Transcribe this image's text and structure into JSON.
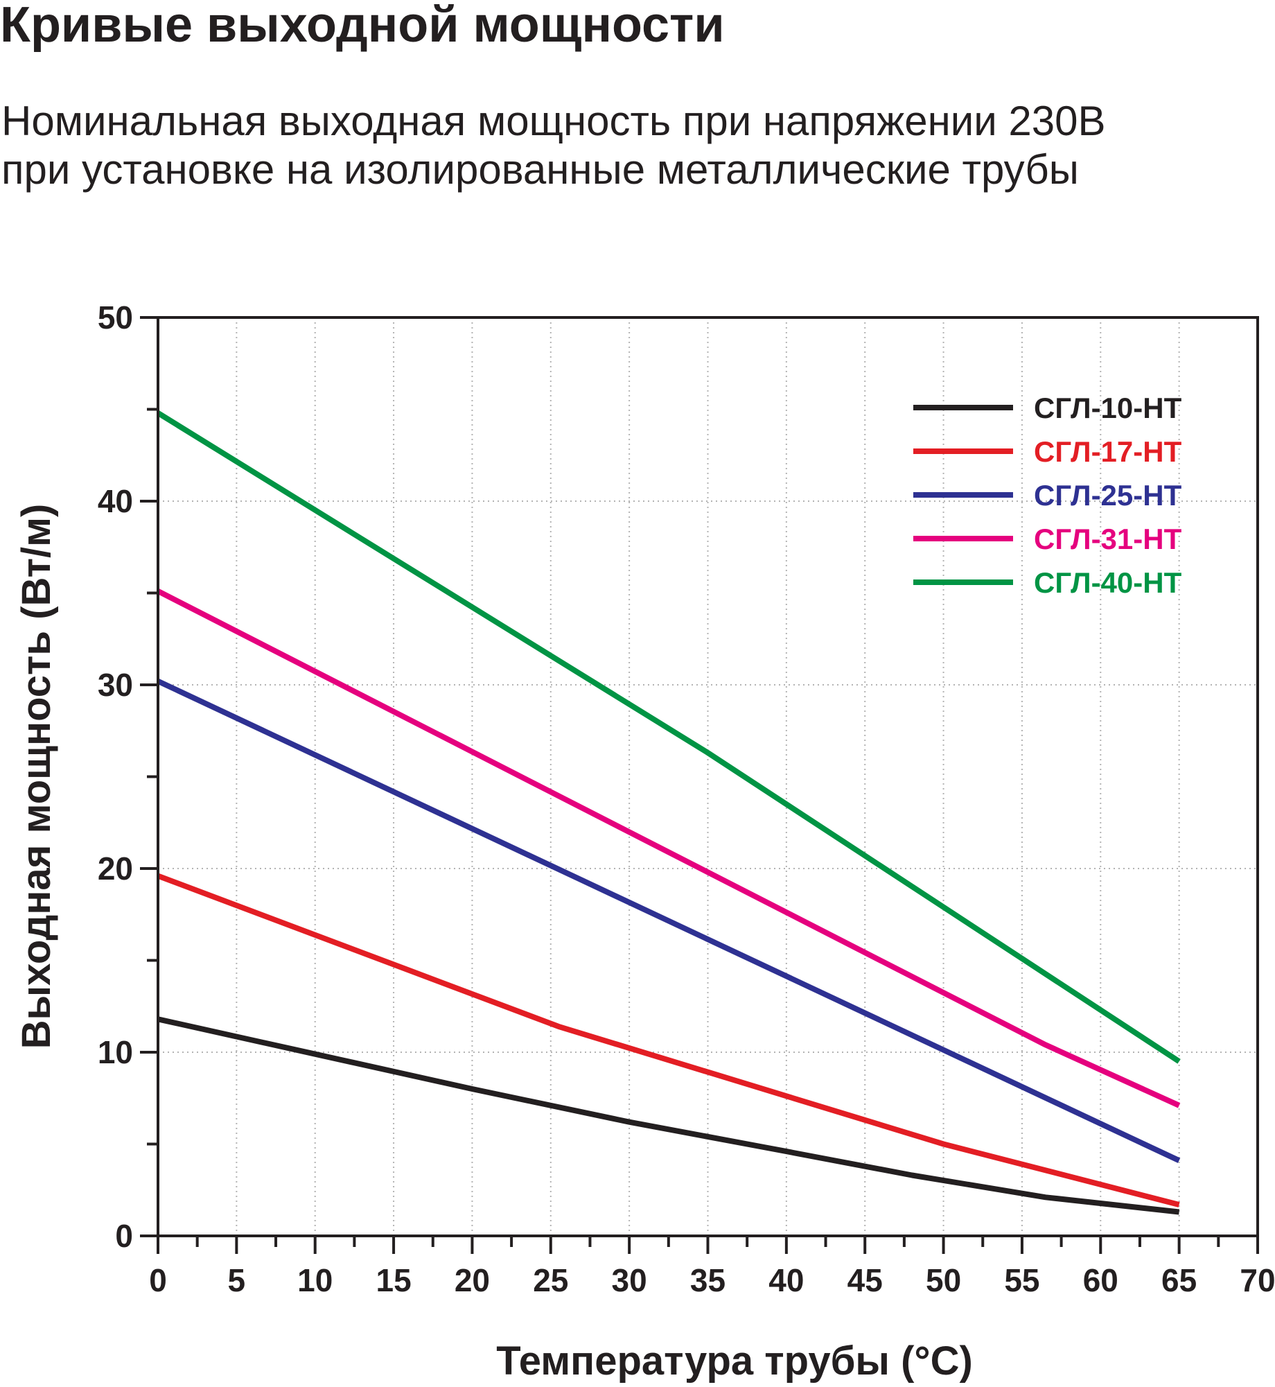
{
  "header": {
    "title": "Кривые выходной мощности",
    "subtitle_line1": "Номинальная выходная мощность при напряжении 230В",
    "subtitle_line2": "при установке на изолированные металлические трубы"
  },
  "chart_data": {
    "type": "line",
    "title": "Кривые выходной мощности",
    "subtitle": "Номинальная выходная мощность при напряжении 230В при установке на изолированные металлические трубы",
    "xlabel": "Температура трубы (°C)",
    "ylabel": "Выходная мощность (Вт/м)",
    "xlim": [
      0,
      70
    ],
    "ylim": [
      0,
      50
    ],
    "x_ticks": [
      0,
      5,
      10,
      15,
      20,
      25,
      30,
      35,
      40,
      45,
      50,
      55,
      60,
      65,
      70
    ],
    "y_ticks": [
      0,
      10,
      20,
      30,
      40,
      50
    ],
    "x_minor_step": 2.5,
    "y_minor_step": 5,
    "grid": "dotted",
    "legend_position": "top-right",
    "series": [
      {
        "name": "СГЛ-10-НТ",
        "color": "#231f20",
        "points": [
          [
            0,
            11.8
          ],
          [
            10,
            9.9
          ],
          [
            20,
            8.0
          ],
          [
            30,
            6.2
          ],
          [
            40,
            4.6
          ],
          [
            48,
            3.3
          ],
          [
            56.5,
            2.1
          ],
          [
            65,
            1.3
          ]
        ]
      },
      {
        "name": "СГЛ-17-НТ",
        "color": "#e31e24",
        "points": [
          [
            0,
            19.6
          ],
          [
            25.5,
            11.4
          ],
          [
            50,
            5.0
          ],
          [
            65,
            1.7
          ]
        ]
      },
      {
        "name": "СГЛ-25-НТ",
        "color": "#2e3192",
        "points": [
          [
            0,
            30.2
          ],
          [
            65,
            4.1
          ]
        ]
      },
      {
        "name": "СГЛ-31-НТ",
        "color": "#e5007e",
        "points": [
          [
            0,
            35.1
          ],
          [
            56.5,
            10.4
          ],
          [
            65,
            7.1
          ]
        ]
      },
      {
        "name": "СГЛ-40-НТ",
        "color": "#009444",
        "points": [
          [
            0,
            44.8
          ],
          [
            35,
            26.3
          ],
          [
            65,
            9.5
          ]
        ]
      }
    ]
  }
}
